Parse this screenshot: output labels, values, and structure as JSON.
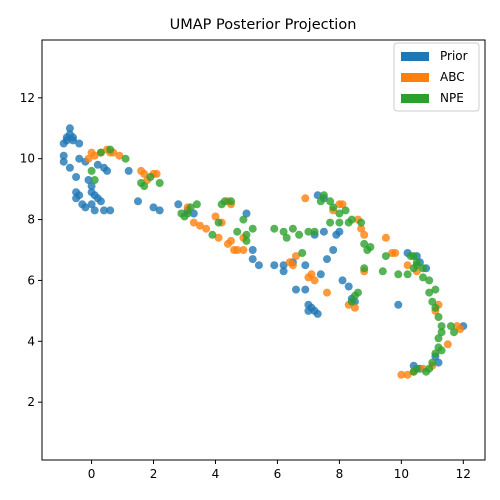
{
  "chart_data": {
    "type": "scatter",
    "title": "UMAP Posterior Projection",
    "xlabel": "",
    "ylabel": "",
    "xlim": [
      -1.6,
      12.7
    ],
    "ylim": [
      0.1,
      13.9
    ],
    "xticks": [
      0,
      2,
      4,
      6,
      8,
      10,
      12
    ],
    "yticks": [
      2,
      4,
      6,
      8,
      10,
      12
    ],
    "grid": false,
    "legend_position": "top-right",
    "series": [
      {
        "name": "Prior",
        "color": "#1f77b4",
        "points": [
          [
            -0.9,
            10.5
          ],
          [
            -0.8,
            10.7
          ],
          [
            -0.7,
            10.8
          ],
          [
            -0.6,
            10.6
          ],
          [
            -0.7,
            11.0
          ],
          [
            -0.6,
            10.7
          ],
          [
            -0.4,
            10.5
          ],
          [
            -0.8,
            10.6
          ],
          [
            -0.9,
            10.1
          ],
          [
            -0.9,
            9.9
          ],
          [
            -0.7,
            9.7
          ],
          [
            -0.5,
            9.4
          ],
          [
            -0.4,
            10.0
          ],
          [
            -0.2,
            9.9
          ],
          [
            0.2,
            9.8
          ],
          [
            0.4,
            9.7
          ],
          [
            0.5,
            9.6
          ],
          [
            -0.5,
            8.9
          ],
          [
            -0.4,
            8.8
          ],
          [
            -0.5,
            8.7
          ],
          [
            -0.3,
            8.5
          ],
          [
            -0.2,
            8.4
          ],
          [
            0.0,
            8.5
          ],
          [
            0.0,
            8.9
          ],
          [
            0.1,
            8.8
          ],
          [
            0.2,
            8.7
          ],
          [
            0.3,
            8.6
          ],
          [
            0.1,
            8.3
          ],
          [
            0.4,
            8.3
          ],
          [
            0.6,
            8.3
          ],
          [
            0.0,
            9.1
          ],
          [
            -0.1,
            9.3
          ],
          [
            1.2,
            9.6
          ],
          [
            1.5,
            8.6
          ],
          [
            2.0,
            8.4
          ],
          [
            2.2,
            8.3
          ],
          [
            2.8,
            8.5
          ],
          [
            3.1,
            8.3
          ],
          [
            3.3,
            8.2
          ],
          [
            5.0,
            8.2
          ],
          [
            5.2,
            7.0
          ],
          [
            5.2,
            6.7
          ],
          [
            5.4,
            6.5
          ],
          [
            5.9,
            6.5
          ],
          [
            6.2,
            6.5
          ],
          [
            6.2,
            6.3
          ],
          [
            6.5,
            6.6
          ],
          [
            6.6,
            5.7
          ],
          [
            6.9,
            5.7
          ],
          [
            6.9,
            6.5
          ],
          [
            7.0,
            5.2
          ],
          [
            7.0,
            5.0
          ],
          [
            7.1,
            5.1
          ],
          [
            7.2,
            5.0
          ],
          [
            7.3,
            4.9
          ],
          [
            7.4,
            6.2
          ],
          [
            7.2,
            7.5
          ],
          [
            7.5,
            7.6
          ],
          [
            7.6,
            6.7
          ],
          [
            7.8,
            7.0
          ],
          [
            7.9,
            7.5
          ],
          [
            8.0,
            7.6
          ],
          [
            8.1,
            6.0
          ],
          [
            8.3,
            5.8
          ],
          [
            8.4,
            5.4
          ],
          [
            8.5,
            5.3
          ],
          [
            7.3,
            8.8
          ],
          [
            7.5,
            8.7
          ],
          [
            9.9,
            5.2
          ],
          [
            10.2,
            6.9
          ],
          [
            10.5,
            6.8
          ],
          [
            10.6,
            6.6
          ],
          [
            10.8,
            6.4
          ],
          [
            10.4,
            3.2
          ],
          [
            10.6,
            3.1
          ],
          [
            11.1,
            3.5
          ],
          [
            12.0,
            4.5
          ],
          [
            11.2,
            3.3
          ]
        ]
      },
      {
        "name": "ABC",
        "color": "#ff7f0e",
        "points": [
          [
            -0.1,
            10.0
          ],
          [
            0.0,
            10.2
          ],
          [
            0.1,
            10.1
          ],
          [
            0.3,
            10.2
          ],
          [
            0.5,
            10.3
          ],
          [
            0.6,
            10.2
          ],
          [
            0.7,
            10.2
          ],
          [
            0.9,
            10.1
          ],
          [
            1.6,
            9.6
          ],
          [
            1.7,
            9.5
          ],
          [
            1.8,
            9.3
          ],
          [
            2.0,
            9.5
          ],
          [
            2.1,
            9.5
          ],
          [
            3.1,
            8.4
          ],
          [
            3.3,
            7.9
          ],
          [
            3.5,
            7.8
          ],
          [
            3.7,
            7.7
          ],
          [
            4.0,
            8.1
          ],
          [
            4.1,
            7.4
          ],
          [
            4.2,
            7.9
          ],
          [
            4.4,
            8.6
          ],
          [
            4.5,
            8.5
          ],
          [
            4.4,
            7.2
          ],
          [
            4.5,
            7.3
          ],
          [
            4.6,
            7.0
          ],
          [
            4.7,
            7.0
          ],
          [
            4.9,
            7.0
          ],
          [
            4.9,
            7.4
          ],
          [
            6.4,
            6.6
          ],
          [
            6.5,
            6.5
          ],
          [
            6.6,
            6.8
          ],
          [
            6.9,
            8.7
          ],
          [
            7.0,
            6.1
          ],
          [
            7.1,
            6.2
          ],
          [
            7.2,
            6.0
          ],
          [
            7.6,
            5.6
          ],
          [
            7.8,
            8.3
          ],
          [
            8.0,
            8.5
          ],
          [
            8.1,
            8.5
          ],
          [
            8.3,
            5.2
          ],
          [
            8.5,
            5.1
          ],
          [
            8.6,
            8.0
          ],
          [
            8.7,
            7.7
          ],
          [
            8.8,
            7.5
          ],
          [
            8.8,
            6.3
          ],
          [
            9.5,
            7.4
          ],
          [
            9.7,
            6.9
          ],
          [
            9.8,
            6.9
          ],
          [
            10.0,
            2.9
          ],
          [
            10.2,
            2.9
          ],
          [
            10.4,
            3.0
          ],
          [
            10.7,
            3.1
          ],
          [
            11.0,
            3.2
          ],
          [
            11.1,
            5.0
          ],
          [
            11.2,
            5.2
          ],
          [
            11.5,
            3.9
          ],
          [
            11.8,
            4.5
          ],
          [
            11.9,
            4.4
          ],
          [
            10.2,
            6.5
          ],
          [
            10.5,
            6.3
          ]
        ]
      },
      {
        "name": "NPE",
        "color": "#2ca02c",
        "points": [
          [
            0.0,
            9.6
          ],
          [
            0.1,
            9.3
          ],
          [
            0.3,
            10.2
          ],
          [
            0.6,
            10.3
          ],
          [
            1.1,
            10.0
          ],
          [
            1.6,
            9.2
          ],
          [
            1.7,
            9.1
          ],
          [
            1.9,
            9.4
          ],
          [
            2.2,
            9.2
          ],
          [
            2.9,
            8.2
          ],
          [
            3.0,
            8.1
          ],
          [
            3.1,
            8.2
          ],
          [
            3.2,
            8.4
          ],
          [
            3.4,
            8.5
          ],
          [
            3.9,
            7.5
          ],
          [
            4.1,
            7.9
          ],
          [
            4.2,
            8.5
          ],
          [
            4.3,
            8.6
          ],
          [
            4.5,
            8.6
          ],
          [
            4.7,
            7.6
          ],
          [
            4.9,
            8.0
          ],
          [
            5.0,
            7.5
          ],
          [
            5.0,
            7.3
          ],
          [
            5.2,
            7.7
          ],
          [
            5.9,
            7.7
          ],
          [
            6.2,
            7.6
          ],
          [
            6.3,
            7.4
          ],
          [
            6.5,
            7.7
          ],
          [
            6.7,
            7.5
          ],
          [
            6.8,
            6.9
          ],
          [
            7.0,
            7.6
          ],
          [
            7.2,
            7.6
          ],
          [
            7.4,
            8.6
          ],
          [
            7.5,
            8.8
          ],
          [
            7.7,
            8.6
          ],
          [
            7.8,
            8.4
          ],
          [
            8.0,
            8.2
          ],
          [
            8.2,
            8.3
          ],
          [
            8.4,
            8.0
          ],
          [
            7.7,
            7.9
          ],
          [
            8.0,
            7.9
          ],
          [
            8.3,
            7.9
          ],
          [
            8.7,
            7.9
          ],
          [
            8.8,
            7.2
          ],
          [
            8.9,
            7.0
          ],
          [
            9.0,
            7.1
          ],
          [
            8.8,
            6.4
          ],
          [
            8.4,
            5.3
          ],
          [
            8.5,
            5.5
          ],
          [
            8.6,
            5.6
          ],
          [
            9.4,
            6.3
          ],
          [
            9.9,
            6.2
          ],
          [
            10.2,
            6.2
          ],
          [
            10.4,
            6.4
          ],
          [
            10.4,
            6.8
          ],
          [
            10.5,
            6.5
          ],
          [
            10.7,
            6.1
          ],
          [
            10.9,
            6.0
          ],
          [
            10.7,
            6.4
          ],
          [
            10.9,
            5.6
          ],
          [
            11.0,
            5.3
          ],
          [
            11.1,
            5.1
          ],
          [
            11.1,
            5.7
          ],
          [
            11.2,
            4.8
          ],
          [
            11.3,
            4.5
          ],
          [
            11.3,
            4.3
          ],
          [
            11.2,
            4.1
          ],
          [
            11.2,
            3.8
          ],
          [
            11.1,
            3.6
          ],
          [
            11.3,
            3.7
          ],
          [
            11.0,
            3.3
          ],
          [
            10.9,
            3.1
          ],
          [
            10.8,
            3.0
          ],
          [
            10.4,
            3.0
          ],
          [
            10.5,
            3.1
          ],
          [
            11.6,
            4.5
          ],
          [
            11.7,
            4.3
          ],
          [
            10.5,
            6.6
          ],
          [
            10.3,
            6.8
          ],
          [
            9.5,
            6.8
          ]
        ]
      }
    ]
  }
}
